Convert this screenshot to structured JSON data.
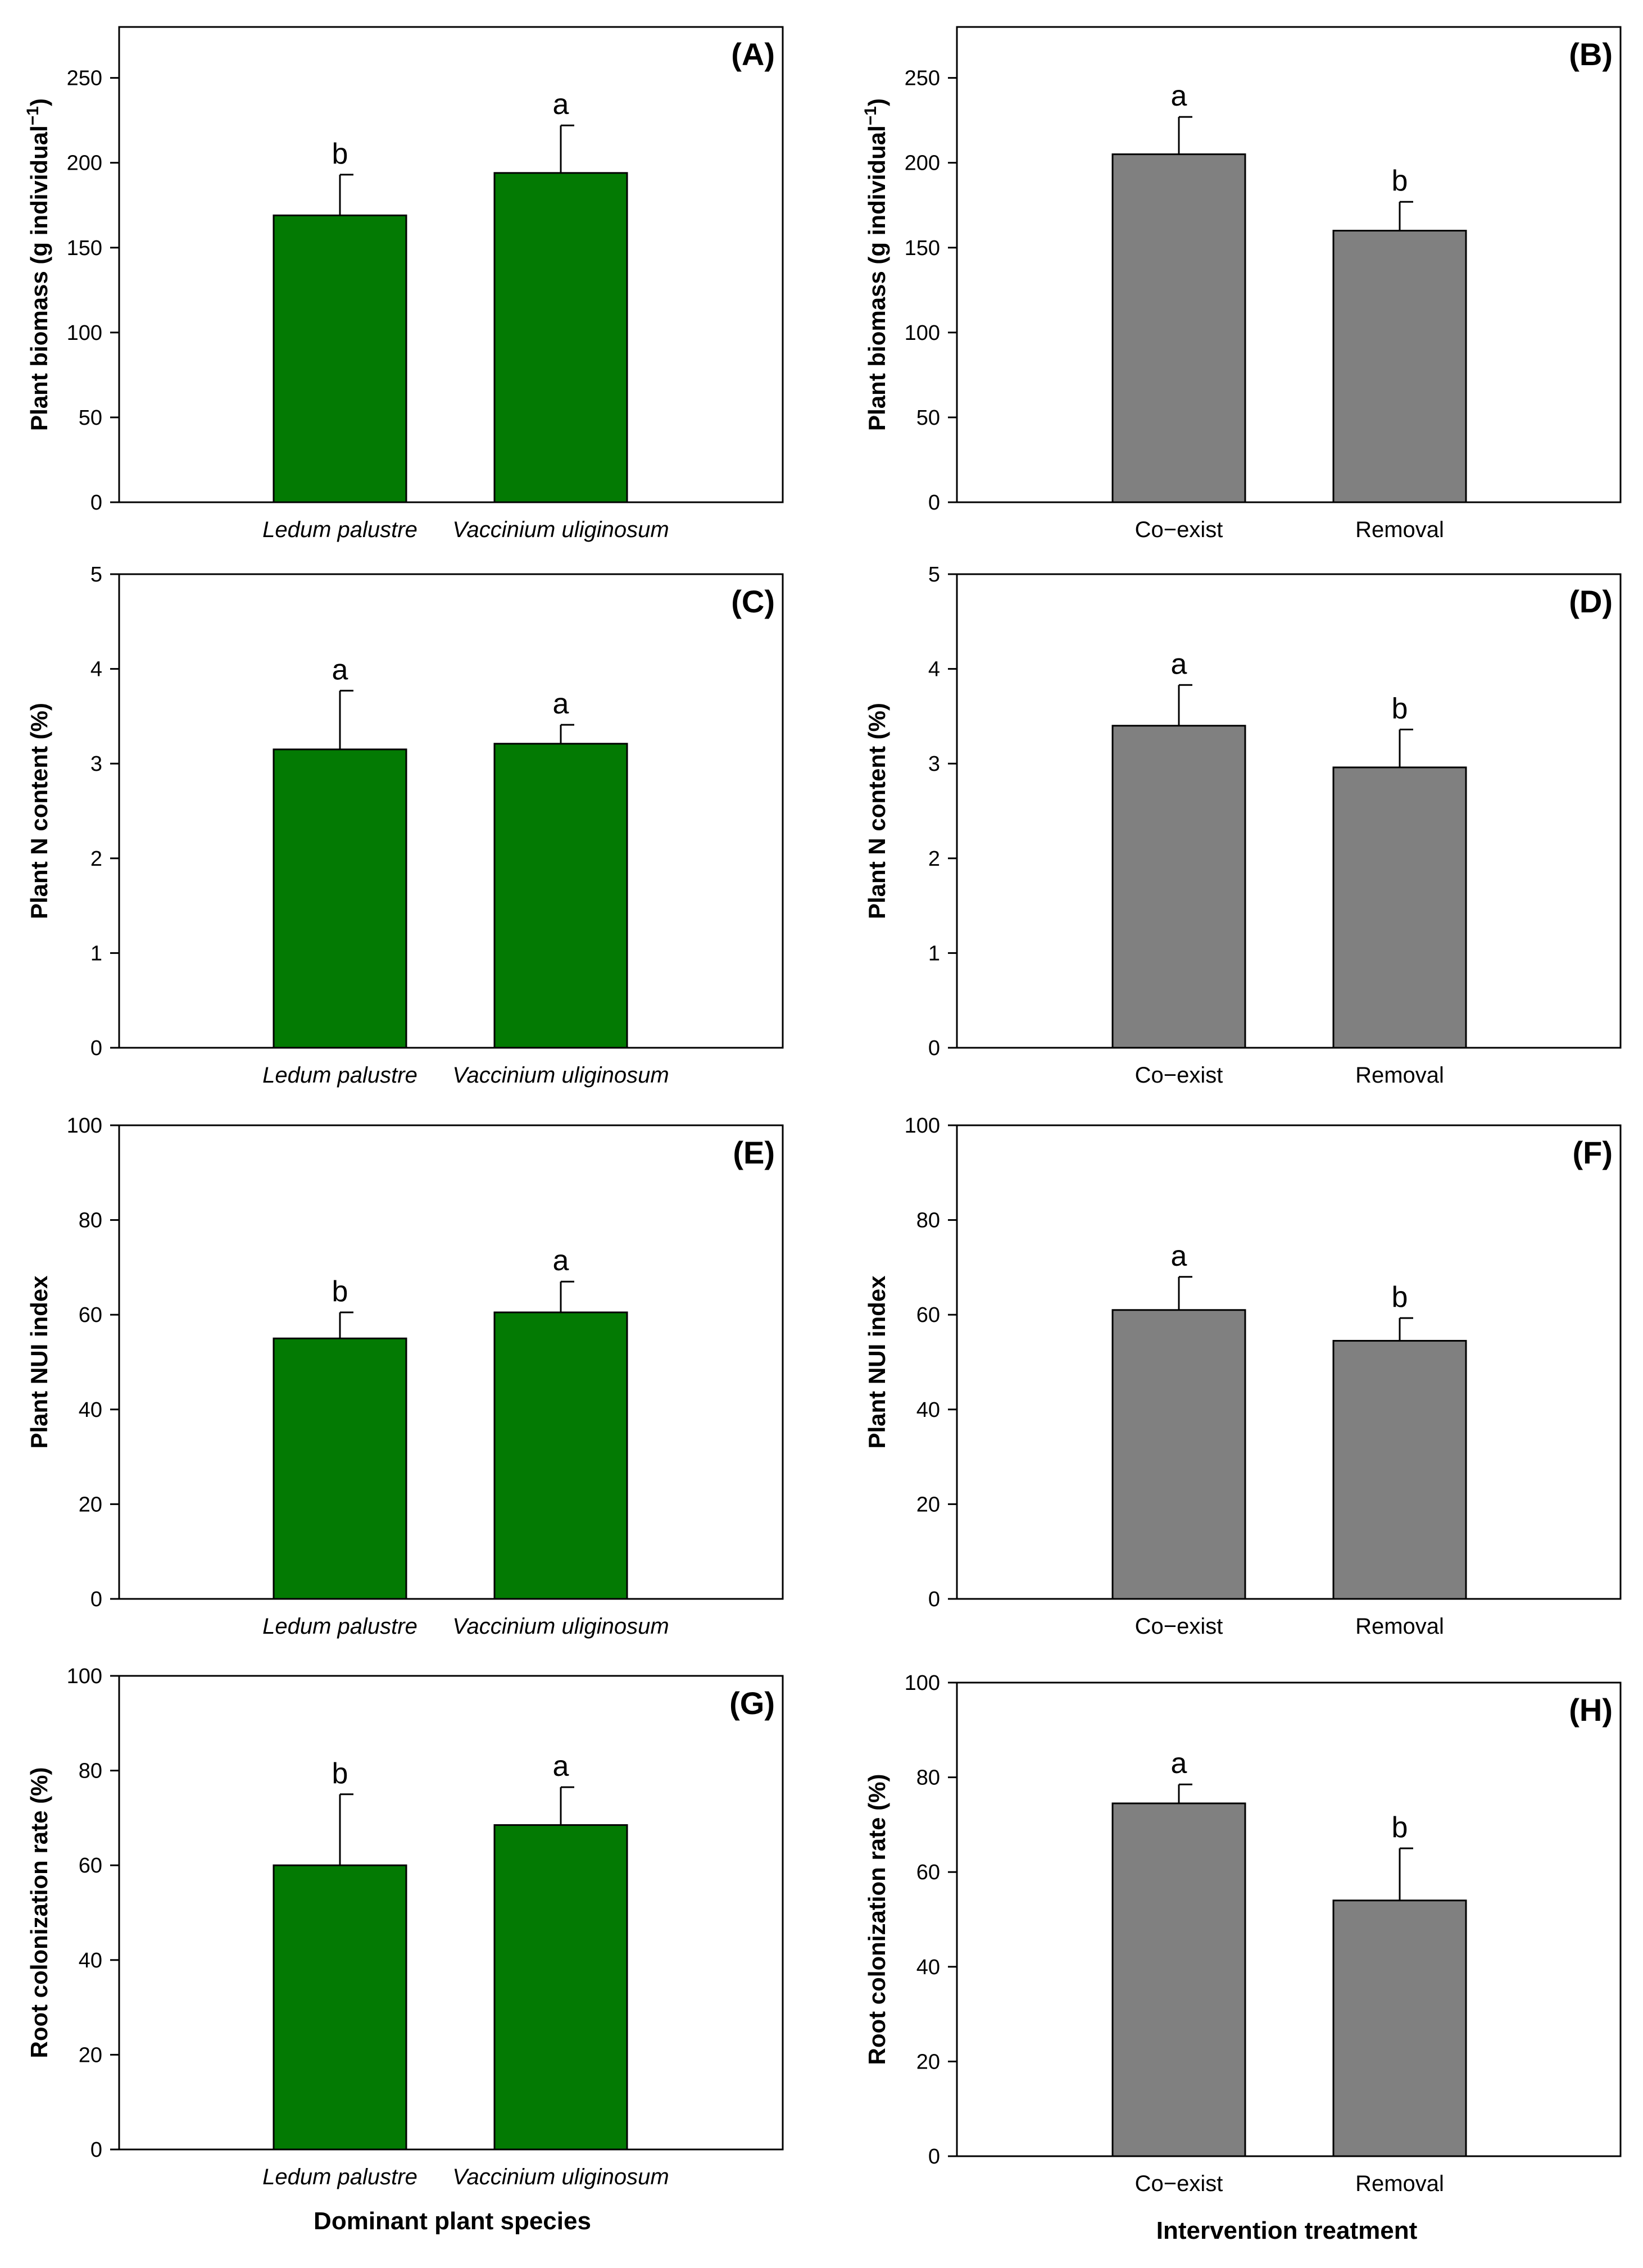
{
  "colors": {
    "species_bar": "#037A03",
    "treatment_bar": "#808080",
    "axis": "#000000"
  },
  "x_titles": {
    "left": "Dominant plant species",
    "right": "Intervention treatment"
  },
  "chart_data": [
    {
      "id": "A",
      "type": "bar",
      "title": "(A)",
      "ylabel": "Plant biomass (g individual",
      "ylabel_sup": "−1",
      "ylabel_close": ")",
      "categories": [
        "Ledum palustre",
        "Vaccinium uliginosum"
      ],
      "italic_categories": true,
      "values": [
        169,
        194
      ],
      "errors": [
        24,
        28
      ],
      "letters": [
        "b",
        "a"
      ],
      "ylim": [
        0,
        280
      ],
      "yticks": [
        0,
        50,
        100,
        150,
        200,
        250
      ],
      "color_key": "species_bar"
    },
    {
      "id": "B",
      "type": "bar",
      "title": "(B)",
      "ylabel": "Plant biomass (g individual",
      "ylabel_sup": "−1",
      "ylabel_close": ")",
      "categories": [
        "Co−exist",
        "Removal"
      ],
      "italic_categories": false,
      "values": [
        205,
        160
      ],
      "errors": [
        22,
        17
      ],
      "letters": [
        "a",
        "b"
      ],
      "ylim": [
        0,
        280
      ],
      "yticks": [
        0,
        50,
        100,
        150,
        200,
        250
      ],
      "color_key": "treatment_bar"
    },
    {
      "id": "C",
      "type": "bar",
      "title": "(C)",
      "ylabel": "Plant N content (%)",
      "categories": [
        "Ledum palustre",
        "Vaccinium uliginosum"
      ],
      "italic_categories": true,
      "values": [
        3.15,
        3.21
      ],
      "errors": [
        0.62,
        0.2
      ],
      "letters": [
        "a",
        "a"
      ],
      "ylim": [
        0,
        5
      ],
      "yticks": [
        0,
        1,
        2,
        3,
        4,
        5
      ],
      "color_key": "species_bar"
    },
    {
      "id": "D",
      "type": "bar",
      "title": "(D)",
      "ylabel": "Plant N content (%)",
      "categories": [
        "Co−exist",
        "Removal"
      ],
      "italic_categories": false,
      "values": [
        3.4,
        2.96
      ],
      "errors": [
        0.43,
        0.4
      ],
      "letters": [
        "a",
        "b"
      ],
      "ylim": [
        0,
        5
      ],
      "yticks": [
        0,
        1,
        2,
        3,
        4,
        5
      ],
      "color_key": "treatment_bar"
    },
    {
      "id": "E",
      "type": "bar",
      "title": "(E)",
      "ylabel": "Plant NUI index",
      "categories": [
        "Ledum palustre",
        "Vaccinium uliginosum"
      ],
      "italic_categories": true,
      "values": [
        55,
        60.5
      ],
      "errors": [
        5.5,
        6.5
      ],
      "letters": [
        "b",
        "a"
      ],
      "ylim": [
        0,
        100
      ],
      "yticks": [
        0,
        20,
        40,
        60,
        80,
        100
      ],
      "color_key": "species_bar"
    },
    {
      "id": "F",
      "type": "bar",
      "title": "(F)",
      "ylabel": "Plant NUI index",
      "categories": [
        "Co−exist",
        "Removal"
      ],
      "italic_categories": false,
      "values": [
        61,
        54.5
      ],
      "errors": [
        7,
        4.8
      ],
      "letters": [
        "a",
        "b"
      ],
      "ylim": [
        0,
        100
      ],
      "yticks": [
        0,
        20,
        40,
        60,
        80,
        100
      ],
      "color_key": "treatment_bar"
    },
    {
      "id": "G",
      "type": "bar",
      "title": "(G)",
      "ylabel": "Root colonization rate (%)",
      "categories": [
        "Ledum palustre",
        "Vaccinium uliginosum"
      ],
      "italic_categories": true,
      "values": [
        60,
        68.5
      ],
      "errors": [
        15,
        8
      ],
      "letters": [
        "b",
        "a"
      ],
      "ylim": [
        0,
        100
      ],
      "yticks": [
        0,
        20,
        40,
        60,
        80,
        100
      ],
      "color_key": "species_bar"
    },
    {
      "id": "H",
      "type": "bar",
      "title": "(H)",
      "ylabel": "Root colonization rate (%)",
      "categories": [
        "Co−exist",
        "Removal"
      ],
      "italic_categories": false,
      "values": [
        74.5,
        54
      ],
      "errors": [
        4,
        11
      ],
      "letters": [
        "a",
        "b"
      ],
      "ylim": [
        0,
        100
      ],
      "yticks": [
        0,
        20,
        40,
        60,
        80,
        100
      ],
      "color_key": "treatment_bar"
    }
  ]
}
